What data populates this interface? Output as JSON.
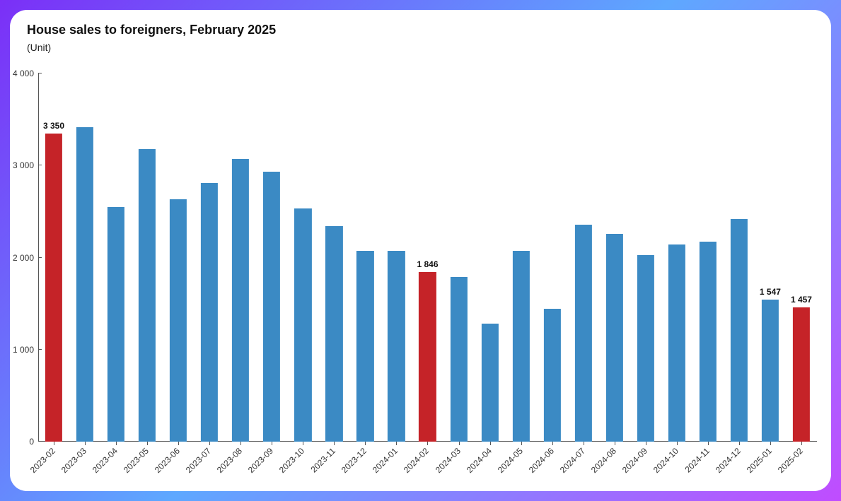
{
  "chart": {
    "type": "bar",
    "title": "House sales to foreigners, February 2025",
    "subtitle": "(Unit)",
    "title_fontsize": 18,
    "subtitle_fontsize": 14,
    "background_color": "#ffffff",
    "bar_width": 0.55,
    "ylim": [
      0,
      4000
    ],
    "ytick_step": 1000,
    "yticks": [
      "0",
      "1 000",
      "2 000",
      "3 000",
      "4 000"
    ],
    "axis_color": "#555555",
    "colors": {
      "blue": "#3b8ac4",
      "red": "#c52328"
    },
    "categories": [
      "2023-02",
      "2023-03",
      "2023-04",
      "2023-05",
      "2023-06",
      "2023-07",
      "2023-08",
      "2023-09",
      "2023-10",
      "2023-11",
      "2023-12",
      "2024-01",
      "2024-02",
      "2024-03",
      "2024-04",
      "2024-05",
      "2024-06",
      "2024-07",
      "2024-08",
      "2024-09",
      "2024-10",
      "2024-11",
      "2024-12",
      "2025-01",
      "2025-02"
    ],
    "values": [
      3350,
      3420,
      2550,
      3180,
      2630,
      2810,
      3070,
      2930,
      2530,
      2340,
      2070,
      2070,
      1846,
      1790,
      1280,
      2070,
      1440,
      2360,
      2260,
      2030,
      2140,
      2170,
      2420,
      1547,
      1457
    ],
    "bar_colors": [
      "red",
      "blue",
      "blue",
      "blue",
      "blue",
      "blue",
      "blue",
      "blue",
      "blue",
      "blue",
      "blue",
      "blue",
      "red",
      "blue",
      "blue",
      "blue",
      "blue",
      "blue",
      "blue",
      "blue",
      "blue",
      "blue",
      "blue",
      "blue",
      "red"
    ],
    "value_labels": [
      "3 350",
      null,
      null,
      null,
      null,
      null,
      null,
      null,
      null,
      null,
      null,
      null,
      "1 846",
      null,
      null,
      null,
      null,
      null,
      null,
      null,
      null,
      null,
      null,
      "1 547",
      "1 457"
    ]
  },
  "frame": {
    "gradient_colors": [
      "#7b2ff7",
      "#5ea8ff",
      "#c04cff"
    ],
    "corner_radius": 24
  }
}
